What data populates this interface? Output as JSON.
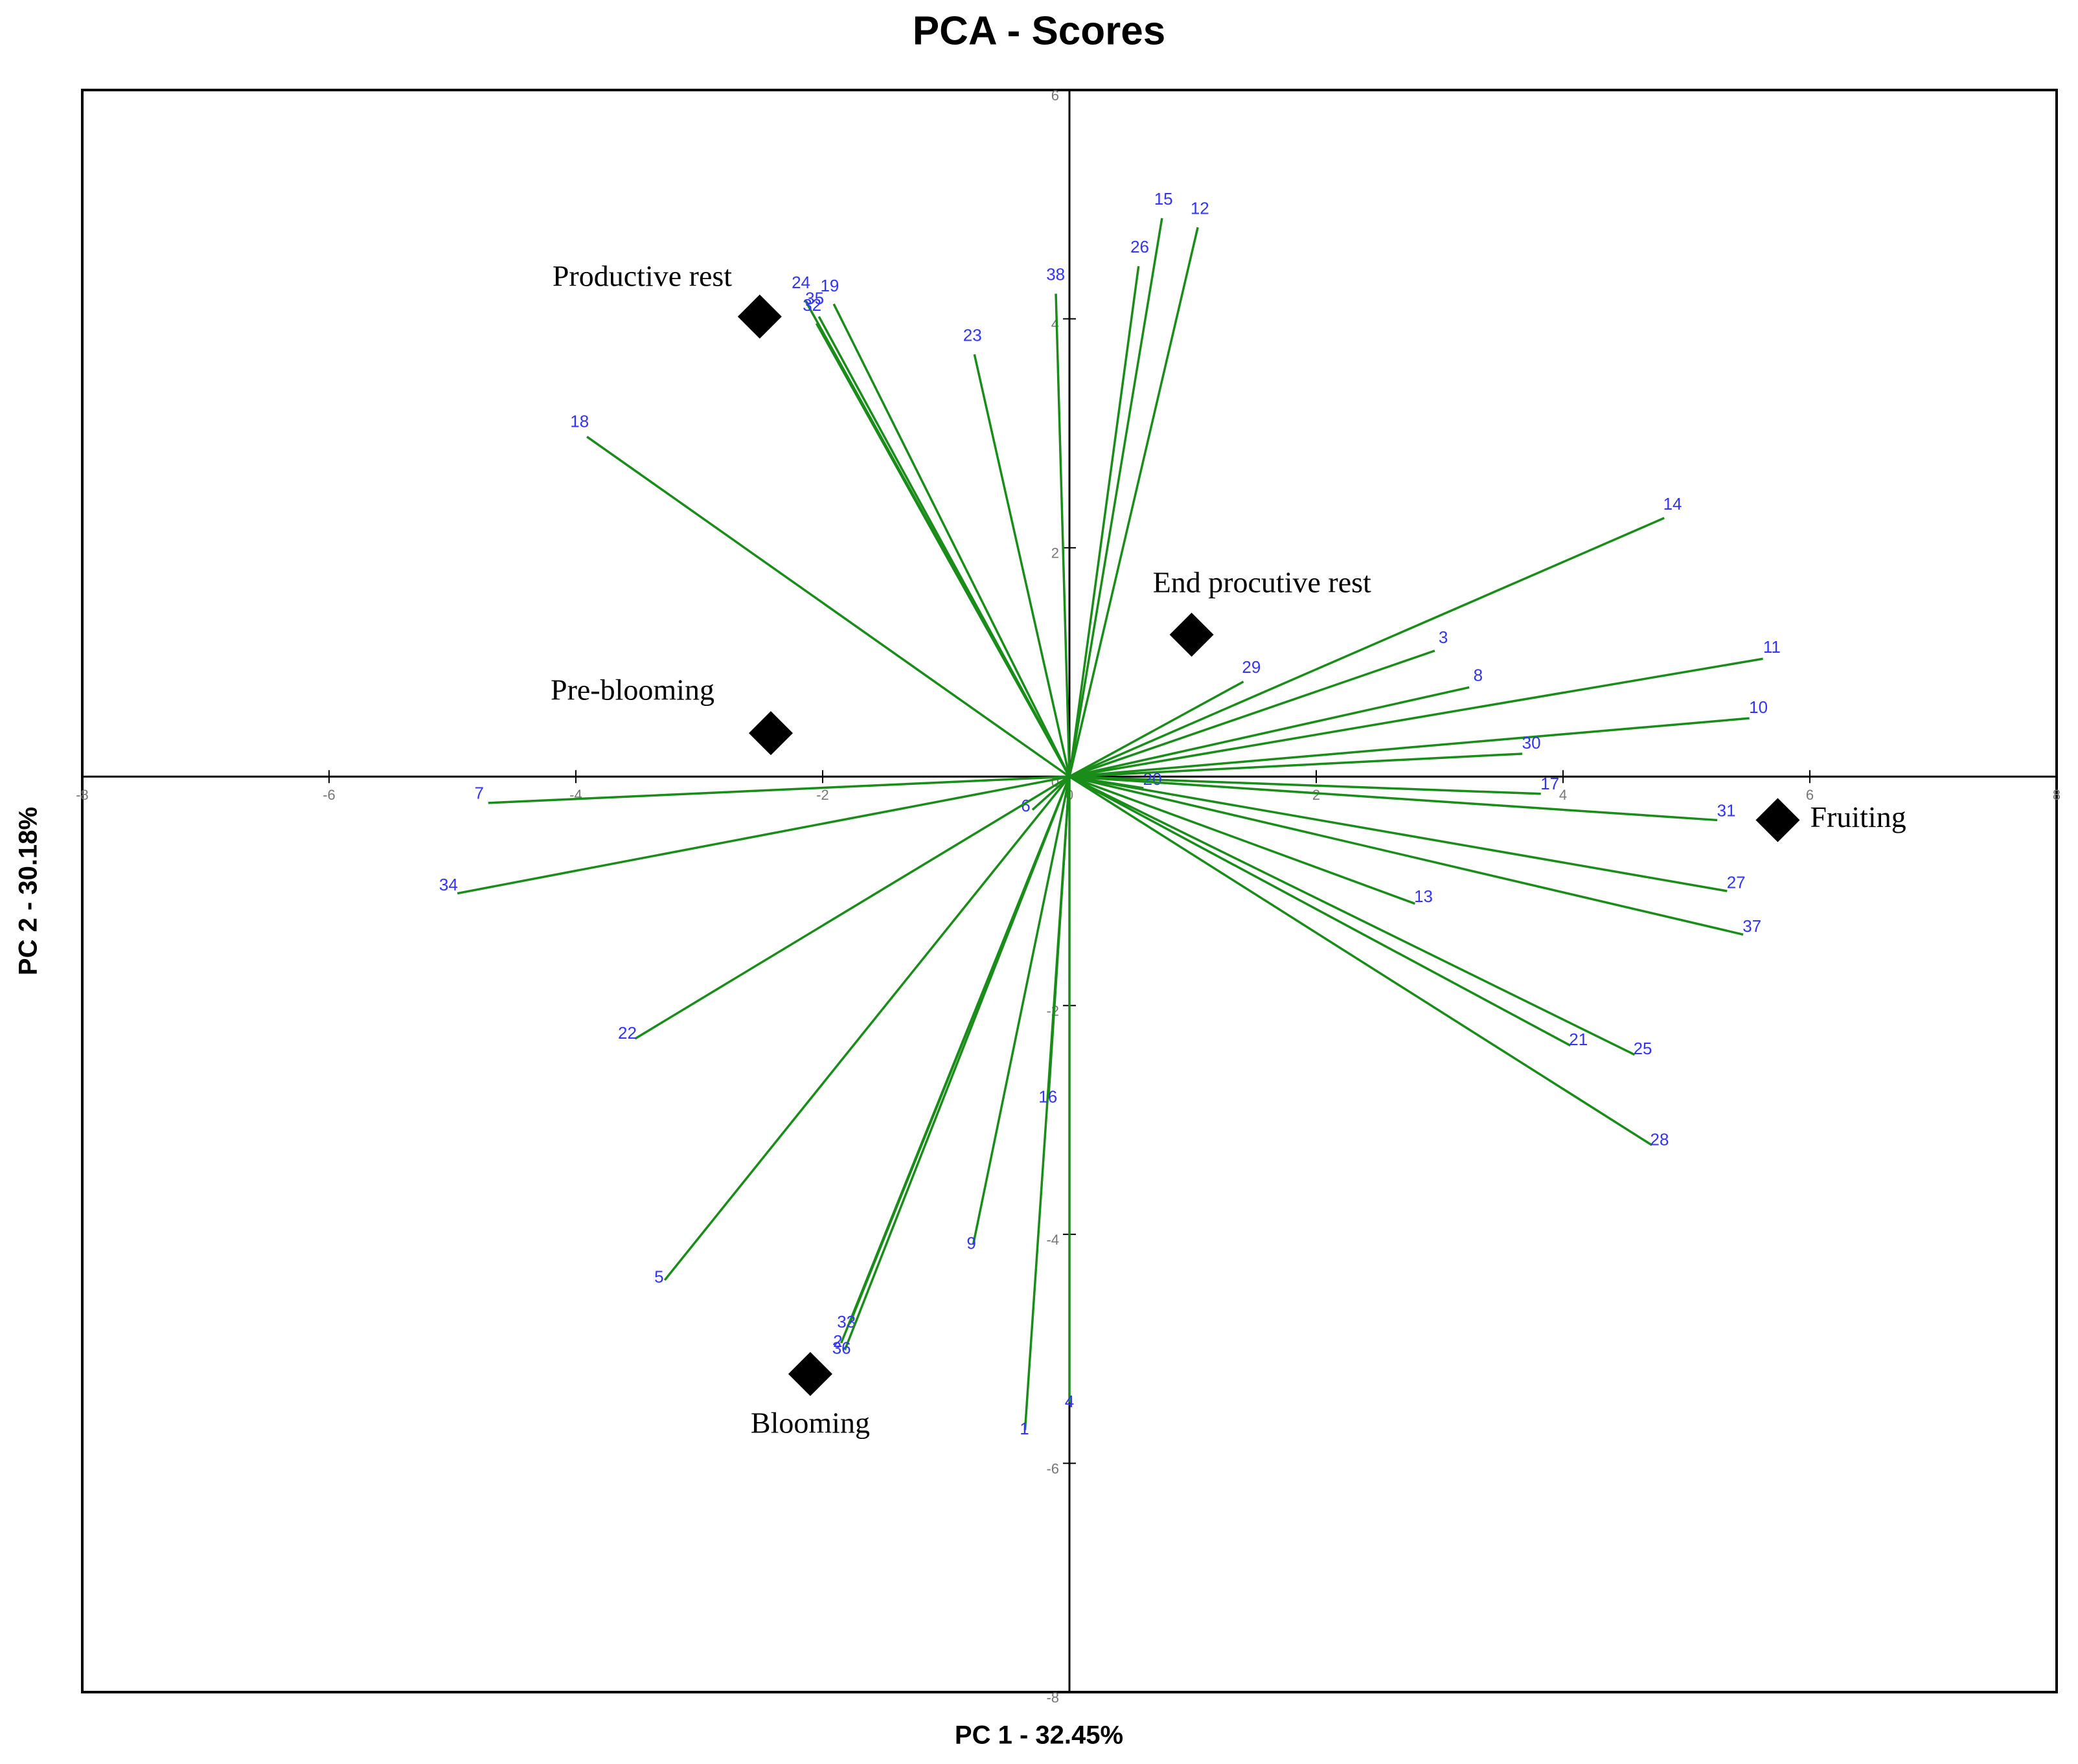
{
  "chart_data": {
    "type": "biplot",
    "title": "PCA - Scores",
    "x_label": "PC 1 - 32.45%",
    "y_label": "PC 2 - 30.18%",
    "xlim": [
      -8,
      8
    ],
    "ylim": [
      -8,
      6
    ],
    "xticks": [
      -8,
      -6,
      -4,
      -2,
      0,
      2,
      4,
      6,
      8
    ],
    "yticks": [
      -8,
      -6,
      -4,
      -2,
      0,
      2,
      4,
      6
    ],
    "scores": {
      "color": "#000000",
      "names": [
        "Productive rest",
        "Pre-blooming",
        "End procutive rest",
        "Fruiting",
        "Blooming"
      ],
      "x": [
        -2.51,
        -2.42,
        0.99,
        5.74,
        -2.1
      ],
      "y": [
        4.02,
        0.38,
        1.24,
        -0.38,
        -5.22
      ]
    },
    "loadings": {
      "color": "#1a8c1a",
      "label_color": "#3333ff",
      "names": [
        "1",
        "2",
        "3",
        "4",
        "5",
        "6",
        "7",
        "8",
        "9",
        "10",
        "11",
        "12",
        "13",
        "14",
        "15",
        "16",
        "17",
        "18",
        "19",
        "20",
        "21",
        "22",
        "23",
        "24",
        "25",
        "26",
        "27",
        "28",
        "29",
        "30",
        "31",
        "32",
        "33",
        "34",
        "35",
        "36",
        "37",
        "38"
      ],
      "x": [
        -0.36,
        -1.85,
        2.96,
        0,
        -3.28,
        -0.3,
        -4.71,
        3.24,
        -0.78,
        5.51,
        5.62,
        1.04,
        2.8,
        4.82,
        0.75,
        -0.17,
        3.82,
        -3.91,
        -1.91,
        0.6,
        4.06,
        -3.52,
        -0.77,
        -2.14,
        4.58,
        0.56,
        5.33,
        4.72,
        1.41,
        3.67,
        5.25,
        -2.05,
        -1.78,
        -4.96,
        -2.03,
        -1.82,
        5.46,
        -0.11
      ],
      "y": [
        -5.71,
        -4.95,
        1.1,
        -5.47,
        -4.4,
        -0.29,
        -0.23,
        0.78,
        -4.09,
        0.51,
        1.03,
        4.8,
        -1.11,
        2.26,
        4.88,
        -2.81,
        -0.15,
        2.97,
        4.13,
        -0.1,
        -2.35,
        -2.29,
        3.69,
        4.16,
        -2.43,
        4.46,
        -1.0,
        -3.22,
        0.83,
        0.2,
        -0.38,
        3.96,
        -4.78,
        -1.02,
        4.02,
        -5.01,
        -1.38,
        4.22
      ]
    }
  }
}
